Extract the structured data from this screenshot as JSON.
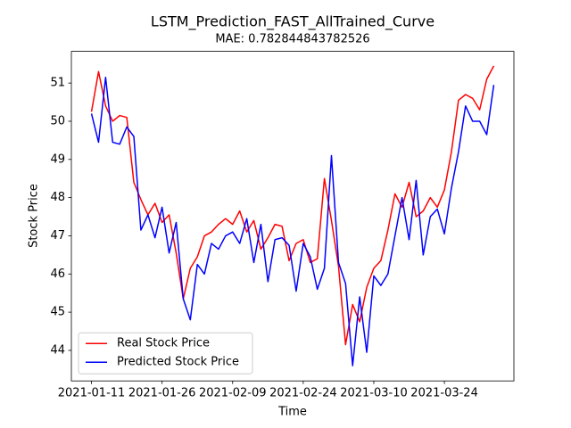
{
  "chart_data": {
    "type": "line",
    "title": "LSTM_Prediction_FAST_AllTrained_Curve",
    "subtitle": "MAE: 0.782844843782526",
    "xlabel": "Time",
    "ylabel": "Stock Price",
    "x": [
      0,
      1,
      2,
      3,
      4,
      5,
      6,
      7,
      8,
      9,
      10,
      11,
      12,
      13,
      14,
      15,
      16,
      17,
      18,
      19,
      20,
      21,
      22,
      23,
      24,
      25,
      26,
      27,
      28,
      29,
      30,
      31,
      32,
      33,
      34,
      35,
      36,
      37,
      38,
      39,
      40,
      41,
      42,
      43,
      44,
      45,
      46,
      47,
      48,
      49,
      50,
      51,
      52,
      53,
      54,
      55,
      56,
      57
    ],
    "series": [
      {
        "name": "Real Stock Price",
        "color": "#ff0000",
        "values": [
          50.25,
          51.3,
          50.4,
          50.0,
          50.15,
          50.1,
          48.4,
          47.95,
          47.55,
          47.85,
          47.35,
          47.55,
          46.55,
          45.35,
          46.15,
          46.45,
          47.0,
          47.1,
          47.3,
          47.45,
          47.3,
          47.65,
          47.1,
          47.4,
          46.65,
          46.95,
          47.3,
          47.25,
          46.35,
          46.8,
          46.9,
          46.3,
          46.4,
          48.5,
          47.4,
          46.2,
          44.15,
          45.2,
          44.75,
          45.65,
          46.15,
          46.35,
          47.15,
          48.1,
          47.75,
          48.4,
          47.5,
          47.65,
          48.0,
          47.75,
          48.2,
          49.2,
          50.55,
          50.7,
          50.6,
          50.3,
          51.1,
          51.45
        ]
      },
      {
        "name": "Predicted Stock Price",
        "color": "#0000ff",
        "values": [
          50.2,
          49.45,
          51.15,
          49.45,
          49.4,
          49.85,
          49.6,
          47.15,
          47.55,
          46.95,
          47.75,
          46.55,
          47.35,
          45.35,
          44.8,
          46.25,
          46.0,
          46.8,
          46.65,
          47.0,
          47.1,
          46.8,
          47.45,
          46.3,
          47.3,
          45.8,
          46.9,
          46.95,
          46.75,
          45.55,
          46.8,
          46.45,
          45.6,
          46.15,
          49.1,
          46.3,
          45.75,
          43.6,
          45.4,
          43.95,
          45.95,
          45.7,
          46.0,
          47.0,
          48.0,
          46.9,
          48.45,
          46.5,
          47.5,
          47.7,
          47.05,
          48.25,
          49.2,
          50.4,
          50.0,
          50.0,
          49.65,
          50.95
        ]
      }
    ],
    "xlim": [
      -2.85,
      59.85
    ],
    "xticks": [
      {
        "value": 0,
        "label": "2021-01-11"
      },
      {
        "value": 10,
        "label": "2021-01-26"
      },
      {
        "value": 20,
        "label": "2021-02-09"
      },
      {
        "value": 30,
        "label": "2021-02-24"
      },
      {
        "value": 40,
        "label": "2021-03-10"
      },
      {
        "value": 50,
        "label": "2021-03-24"
      }
    ],
    "ylim": [
      43.2,
      51.83
    ],
    "yticks": [
      44,
      45,
      46,
      47,
      48,
      49,
      50,
      51
    ],
    "grid": false,
    "legend": "lower left"
  }
}
